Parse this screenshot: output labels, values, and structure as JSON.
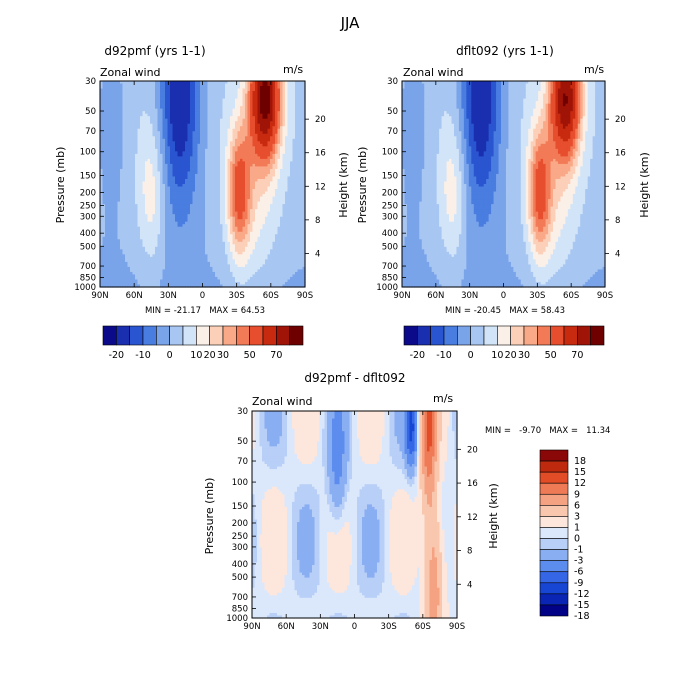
{
  "figure_title": "JJA",
  "chart_data": [
    {
      "type": "heatmap",
      "title": "d92pmf (yrs 1-1)",
      "corner_left": "Zonal wind",
      "corner_right": "m/s",
      "ylabel": "Pressure (mb)",
      "ylabel_right": "Height (km)",
      "xticks": [
        "90N",
        "60N",
        "30N",
        "0",
        "30S",
        "60S",
        "90S"
      ],
      "yticks": [
        "30",
        "50",
        "70",
        "100",
        "150",
        "200",
        "250",
        "300",
        "400",
        "500",
        "700",
        "850",
        "1000"
      ],
      "yticks_right": [
        "20",
        "16",
        "12",
        "8",
        "4"
      ],
      "stats": "MIN = -21.17   MAX = 64.53",
      "min": -21.17,
      "max": 64.53,
      "colorbar_labels": [
        "-20",
        "-10",
        "0",
        "10",
        "20",
        "30",
        "50",
        "70"
      ],
      "features": {
        "easterly_core": {
          "lat": -20,
          "p": 40,
          "value": -20
        },
        "westerly_jet": {
          "lat": 55,
          "p": 40,
          "value": 64
        },
        "subtropical_jet": {
          "lat": 32,
          "p": 200,
          "value": 30
        },
        "nh_jet": {
          "lat": -45,
          "p": 200,
          "value": 15
        }
      }
    },
    {
      "type": "heatmap",
      "title": "dflt092 (yrs 1-1)",
      "corner_left": "Zonal wind",
      "corner_right": "m/s",
      "ylabel": "Pressure (mb)",
      "ylabel_right": "Height (km)",
      "xticks": [
        "90N",
        "60N",
        "30N",
        "0",
        "30S",
        "60S",
        "90S"
      ],
      "yticks": [
        "30",
        "50",
        "70",
        "100",
        "150",
        "200",
        "250",
        "300",
        "400",
        "500",
        "700",
        "850",
        "1000"
      ],
      "yticks_right": [
        "20",
        "16",
        "12",
        "8",
        "4"
      ],
      "stats": "MIN = -20.45   MAX = 58.43",
      "min": -20.45,
      "max": 58.43,
      "colorbar_labels": [
        "-20",
        "-10",
        "0",
        "10",
        "20",
        "30",
        "50",
        "70"
      ],
      "features": {
        "easterly_core": {
          "lat": -20,
          "p": 40,
          "value": -20
        },
        "westerly_jet": {
          "lat": 55,
          "p": 40,
          "value": 58
        },
        "subtropical_jet": {
          "lat": 32,
          "p": 200,
          "value": 30
        },
        "nh_jet": {
          "lat": -45,
          "p": 200,
          "value": 15
        }
      }
    },
    {
      "type": "heatmap",
      "title": "d92pmf - dflt092",
      "corner_left": "Zonal wind",
      "corner_right": "m/s",
      "ylabel": "Pressure (mb)",
      "ylabel_right": "Height (km)",
      "xticks": [
        "90N",
        "60N",
        "30N",
        "0",
        "30S",
        "60S",
        "90S"
      ],
      "yticks": [
        "30",
        "50",
        "70",
        "100",
        "150",
        "200",
        "250",
        "300",
        "400",
        "500",
        "700",
        "850",
        "1000"
      ],
      "yticks_right": [
        "20",
        "16",
        "12",
        "8",
        "4"
      ],
      "stats": "MIN =   -9.70   MAX =   11.34",
      "min": -9.7,
      "max": 11.34,
      "colorbar_labels": [
        "18",
        "15",
        "12",
        "9",
        "6",
        "3",
        "1",
        "0",
        "-1",
        "-3",
        "-6",
        "-9",
        "-12",
        "-15",
        "-18"
      ],
      "features": {
        "max_diff": {
          "lat": 65,
          "p": 40,
          "value": 11.3
        },
        "min_diff": {
          "lat": 50,
          "p": 40,
          "value": -9.7
        }
      }
    }
  ],
  "colors": {
    "levels_main": [
      "#0a0a8a",
      "#1a2fb0",
      "#2a55d0",
      "#4a7de0",
      "#7aa4ea",
      "#a8c6f2",
      "#d2e4f8",
      "#fbf0e8",
      "#fcd0b8",
      "#f9a888",
      "#f27a56",
      "#e64e2e",
      "#c82a10",
      "#a01408",
      "#6e0000"
    ],
    "levels_diff": [
      "#020286",
      "#0a24b4",
      "#1745d4",
      "#3566e6",
      "#5c8cee",
      "#8aaef2",
      "#b8cff7",
      "#dbe8fb",
      "#fde6dc",
      "#f9c6ae",
      "#f5a282",
      "#ef7a56",
      "#e24d28",
      "#bf2a0e",
      "#8a0808"
    ]
  }
}
